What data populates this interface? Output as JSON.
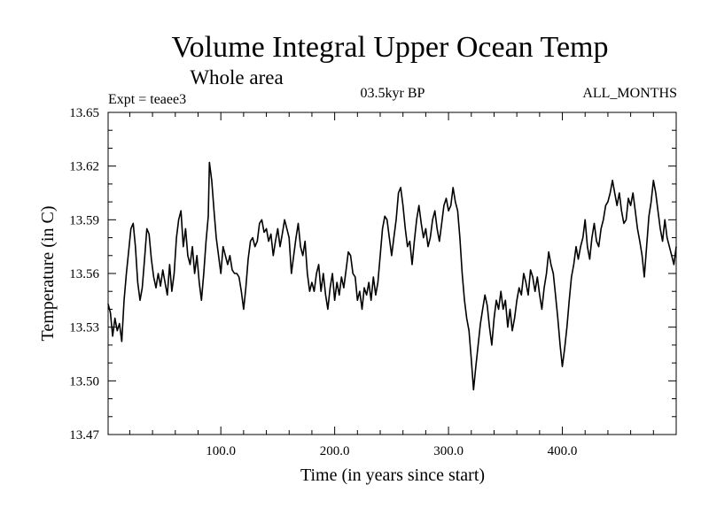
{
  "chart_data": {
    "type": "line",
    "title": "Volume Integral Upper Ocean Temp",
    "subtitle": "Whole area",
    "experiment": "Expt = teaee3",
    "period": "03.5kyr BP",
    "months": "ALL_MONTHS",
    "xlabel": "Time (in years since start)",
    "ylabel": "Temperature (in C)",
    "xlim": [
      1,
      500
    ],
    "ylim": [
      13.47,
      13.65
    ],
    "x_ticks": [
      100.0,
      200.0,
      300.0,
      400.0
    ],
    "x_tick_labels": [
      "100.0",
      "200.0",
      "300.0",
      "400.0"
    ],
    "y_ticks": [
      13.47,
      13.5,
      13.53,
      13.56,
      13.59,
      13.62,
      13.65
    ],
    "y_tick_labels": [
      "13.47",
      "13.50",
      "13.53",
      "13.56",
      "13.59",
      "13.62",
      "13.65"
    ],
    "series": [
      {
        "name": "Volume Integral Upper Ocean Temp",
        "points": [
          [
            1,
            13.543
          ],
          [
            3,
            13.538
          ],
          [
            5,
            13.525
          ],
          [
            7,
            13.535
          ],
          [
            9,
            13.528
          ],
          [
            11,
            13.532
          ],
          [
            13,
            13.522
          ],
          [
            15,
            13.545
          ],
          [
            17,
            13.56
          ],
          [
            19,
            13.572
          ],
          [
            21,
            13.585
          ],
          [
            23,
            13.588
          ],
          [
            25,
            13.575
          ],
          [
            27,
            13.555
          ],
          [
            29,
            13.545
          ],
          [
            31,
            13.552
          ],
          [
            33,
            13.568
          ],
          [
            35,
            13.585
          ],
          [
            37,
            13.582
          ],
          [
            39,
            13.568
          ],
          [
            41,
            13.558
          ],
          [
            43,
            13.552
          ],
          [
            45,
            13.56
          ],
          [
            47,
            13.553
          ],
          [
            49,
            13.562
          ],
          [
            51,
            13.555
          ],
          [
            53,
            13.548
          ],
          [
            55,
            13.565
          ],
          [
            57,
            13.55
          ],
          [
            59,
            13.56
          ],
          [
            61,
            13.58
          ],
          [
            63,
            13.59
          ],
          [
            65,
            13.595
          ],
          [
            67,
            13.575
          ],
          [
            69,
            13.585
          ],
          [
            71,
            13.57
          ],
          [
            73,
            13.565
          ],
          [
            75,
            13.575
          ],
          [
            77,
            13.56
          ],
          [
            79,
            13.57
          ],
          [
            81,
            13.555
          ],
          [
            83,
            13.545
          ],
          [
            85,
            13.56
          ],
          [
            87,
            13.578
          ],
          [
            89,
            13.592
          ],
          [
            90,
            13.622
          ],
          [
            92,
            13.612
          ],
          [
            94,
            13.595
          ],
          [
            96,
            13.58
          ],
          [
            98,
            13.57
          ],
          [
            100,
            13.56
          ],
          [
            102,
            13.575
          ],
          [
            104,
            13.57
          ],
          [
            106,
            13.565
          ],
          [
            108,
            13.57
          ],
          [
            110,
            13.562
          ],
          [
            112,
            13.56
          ],
          [
            114,
            13.56
          ],
          [
            116,
            13.558
          ],
          [
            118,
            13.55
          ],
          [
            120,
            13.54
          ],
          [
            122,
            13.552
          ],
          [
            124,
            13.568
          ],
          [
            126,
            13.578
          ],
          [
            128,
            13.58
          ],
          [
            130,
            13.575
          ],
          [
            132,
            13.578
          ],
          [
            134,
            13.588
          ],
          [
            136,
            13.59
          ],
          [
            138,
            13.583
          ],
          [
            140,
            13.585
          ],
          [
            142,
            13.578
          ],
          [
            144,
            13.582
          ],
          [
            146,
            13.57
          ],
          [
            148,
            13.578
          ],
          [
            150,
            13.585
          ],
          [
            152,
            13.575
          ],
          [
            154,
            13.582
          ],
          [
            156,
            13.59
          ],
          [
            158,
            13.585
          ],
          [
            160,
            13.58
          ],
          [
            162,
            13.56
          ],
          [
            164,
            13.57
          ],
          [
            166,
            13.58
          ],
          [
            168,
            13.588
          ],
          [
            170,
            13.575
          ],
          [
            172,
            13.57
          ],
          [
            174,
            13.578
          ],
          [
            176,
            13.56
          ],
          [
            178,
            13.55
          ],
          [
            180,
            13.555
          ],
          [
            182,
            13.55
          ],
          [
            184,
            13.56
          ],
          [
            186,
            13.565
          ],
          [
            188,
            13.55
          ],
          [
            190,
            13.56
          ],
          [
            192,
            13.548
          ],
          [
            194,
            13.54
          ],
          [
            196,
            13.552
          ],
          [
            198,
            13.56
          ],
          [
            200,
            13.545
          ],
          [
            202,
            13.555
          ],
          [
            204,
            13.548
          ],
          [
            206,
            13.558
          ],
          [
            208,
            13.552
          ],
          [
            210,
            13.562
          ],
          [
            212,
            13.572
          ],
          [
            214,
            13.57
          ],
          [
            216,
            13.56
          ],
          [
            218,
            13.558
          ],
          [
            220,
            13.545
          ],
          [
            222,
            13.55
          ],
          [
            224,
            13.54
          ],
          [
            226,
            13.552
          ],
          [
            228,
            13.548
          ],
          [
            230,
            13.555
          ],
          [
            232,
            13.545
          ],
          [
            234,
            13.558
          ],
          [
            236,
            13.548
          ],
          [
            238,
            13.555
          ],
          [
            240,
            13.57
          ],
          [
            242,
            13.585
          ],
          [
            244,
            13.592
          ],
          [
            246,
            13.59
          ],
          [
            248,
            13.58
          ],
          [
            250,
            13.57
          ],
          [
            252,
            13.58
          ],
          [
            254,
            13.59
          ],
          [
            256,
            13.605
          ],
          [
            258,
            13.608
          ],
          [
            260,
            13.598
          ],
          [
            262,
            13.585
          ],
          [
            264,
            13.575
          ],
          [
            266,
            13.578
          ],
          [
            268,
            13.565
          ],
          [
            270,
            13.578
          ],
          [
            272,
            13.59
          ],
          [
            274,
            13.598
          ],
          [
            276,
            13.588
          ],
          [
            278,
            13.58
          ],
          [
            280,
            13.585
          ],
          [
            282,
            13.575
          ],
          [
            284,
            13.58
          ],
          [
            286,
            13.59
          ],
          [
            288,
            13.595
          ],
          [
            290,
            13.585
          ],
          [
            292,
            13.578
          ],
          [
            294,
            13.588
          ],
          [
            296,
            13.598
          ],
          [
            298,
            13.602
          ],
          [
            300,
            13.595
          ],
          [
            302,
            13.598
          ],
          [
            304,
            13.608
          ],
          [
            306,
            13.6
          ],
          [
            308,
            13.595
          ],
          [
            310,
            13.58
          ],
          [
            312,
            13.56
          ],
          [
            314,
            13.545
          ],
          [
            316,
            13.535
          ],
          [
            318,
            13.528
          ],
          [
            320,
            13.512
          ],
          [
            322,
            13.495
          ],
          [
            324,
            13.508
          ],
          [
            326,
            13.52
          ],
          [
            328,
            13.532
          ],
          [
            330,
            13.54
          ],
          [
            332,
            13.548
          ],
          [
            334,
            13.542
          ],
          [
            336,
            13.53
          ],
          [
            338,
            13.52
          ],
          [
            340,
            13.535
          ],
          [
            342,
            13.545
          ],
          [
            344,
            13.54
          ],
          [
            346,
            13.55
          ],
          [
            348,
            13.54
          ],
          [
            350,
            13.545
          ],
          [
            352,
            13.53
          ],
          [
            354,
            13.54
          ],
          [
            356,
            13.528
          ],
          [
            358,
            13.535
          ],
          [
            360,
            13.545
          ],
          [
            362,
            13.552
          ],
          [
            364,
            13.548
          ],
          [
            366,
            13.56
          ],
          [
            368,
            13.555
          ],
          [
            370,
            13.548
          ],
          [
            372,
            13.562
          ],
          [
            374,
            13.558
          ],
          [
            376,
            13.55
          ],
          [
            378,
            13.558
          ],
          [
            380,
            13.548
          ],
          [
            382,
            13.54
          ],
          [
            384,
            13.552
          ],
          [
            386,
            13.56
          ],
          [
            388,
            13.572
          ],
          [
            390,
            13.565
          ],
          [
            392,
            13.56
          ],
          [
            394,
            13.548
          ],
          [
            396,
            13.535
          ],
          [
            398,
            13.52
          ],
          [
            400,
            13.508
          ],
          [
            402,
            13.518
          ],
          [
            404,
            13.53
          ],
          [
            406,
            13.545
          ],
          [
            408,
            13.558
          ],
          [
            410,
            13.565
          ],
          [
            412,
            13.575
          ],
          [
            414,
            13.568
          ],
          [
            416,
            13.575
          ],
          [
            418,
            13.58
          ],
          [
            420,
            13.59
          ],
          [
            422,
            13.575
          ],
          [
            424,
            13.568
          ],
          [
            426,
            13.58
          ],
          [
            428,
            13.588
          ],
          [
            430,
            13.578
          ],
          [
            432,
            13.575
          ],
          [
            434,
            13.585
          ],
          [
            436,
            13.59
          ],
          [
            438,
            13.598
          ],
          [
            440,
            13.6
          ],
          [
            442,
            13.605
          ],
          [
            444,
            13.612
          ],
          [
            446,
            13.605
          ],
          [
            448,
            13.598
          ],
          [
            450,
            13.605
          ],
          [
            452,
            13.595
          ],
          [
            454,
            13.588
          ],
          [
            456,
            13.59
          ],
          [
            458,
            13.602
          ],
          [
            460,
            13.598
          ],
          [
            462,
            13.605
          ],
          [
            464,
            13.595
          ],
          [
            466,
            13.585
          ],
          [
            468,
            13.578
          ],
          [
            470,
            13.57
          ],
          [
            472,
            13.558
          ],
          [
            474,
            13.575
          ],
          [
            476,
            13.592
          ],
          [
            478,
            13.6
          ],
          [
            480,
            13.612
          ],
          [
            482,
            13.605
          ],
          [
            484,
            13.595
          ],
          [
            486,
            13.585
          ],
          [
            488,
            13.578
          ],
          [
            490,
            13.59
          ],
          [
            492,
            13.58
          ],
          [
            494,
            13.575
          ],
          [
            496,
            13.57
          ],
          [
            498,
            13.565
          ],
          [
            500,
            13.575
          ]
        ]
      }
    ]
  }
}
